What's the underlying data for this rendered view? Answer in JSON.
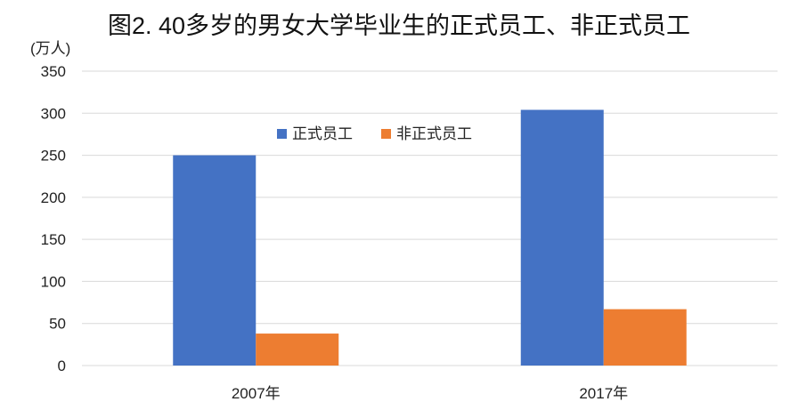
{
  "chart_data": {
    "type": "bar",
    "title": "图2. 40多岁的男女大学毕业生的正式员工、非正式员工",
    "unit_label": "(万人)",
    "categories": [
      "2007年",
      "2017年"
    ],
    "series": [
      {
        "name": "正式员工",
        "values": [
          250,
          304
        ],
        "color": "#4472C4"
      },
      {
        "name": "非正式员工",
        "values": [
          38,
          67
        ],
        "color": "#ED7D31"
      }
    ],
    "ylim": [
      0,
      350
    ],
    "yticks": [
      0,
      50,
      100,
      150,
      200,
      250,
      300,
      350
    ],
    "grid": true,
    "legend_position": "top-center"
  }
}
